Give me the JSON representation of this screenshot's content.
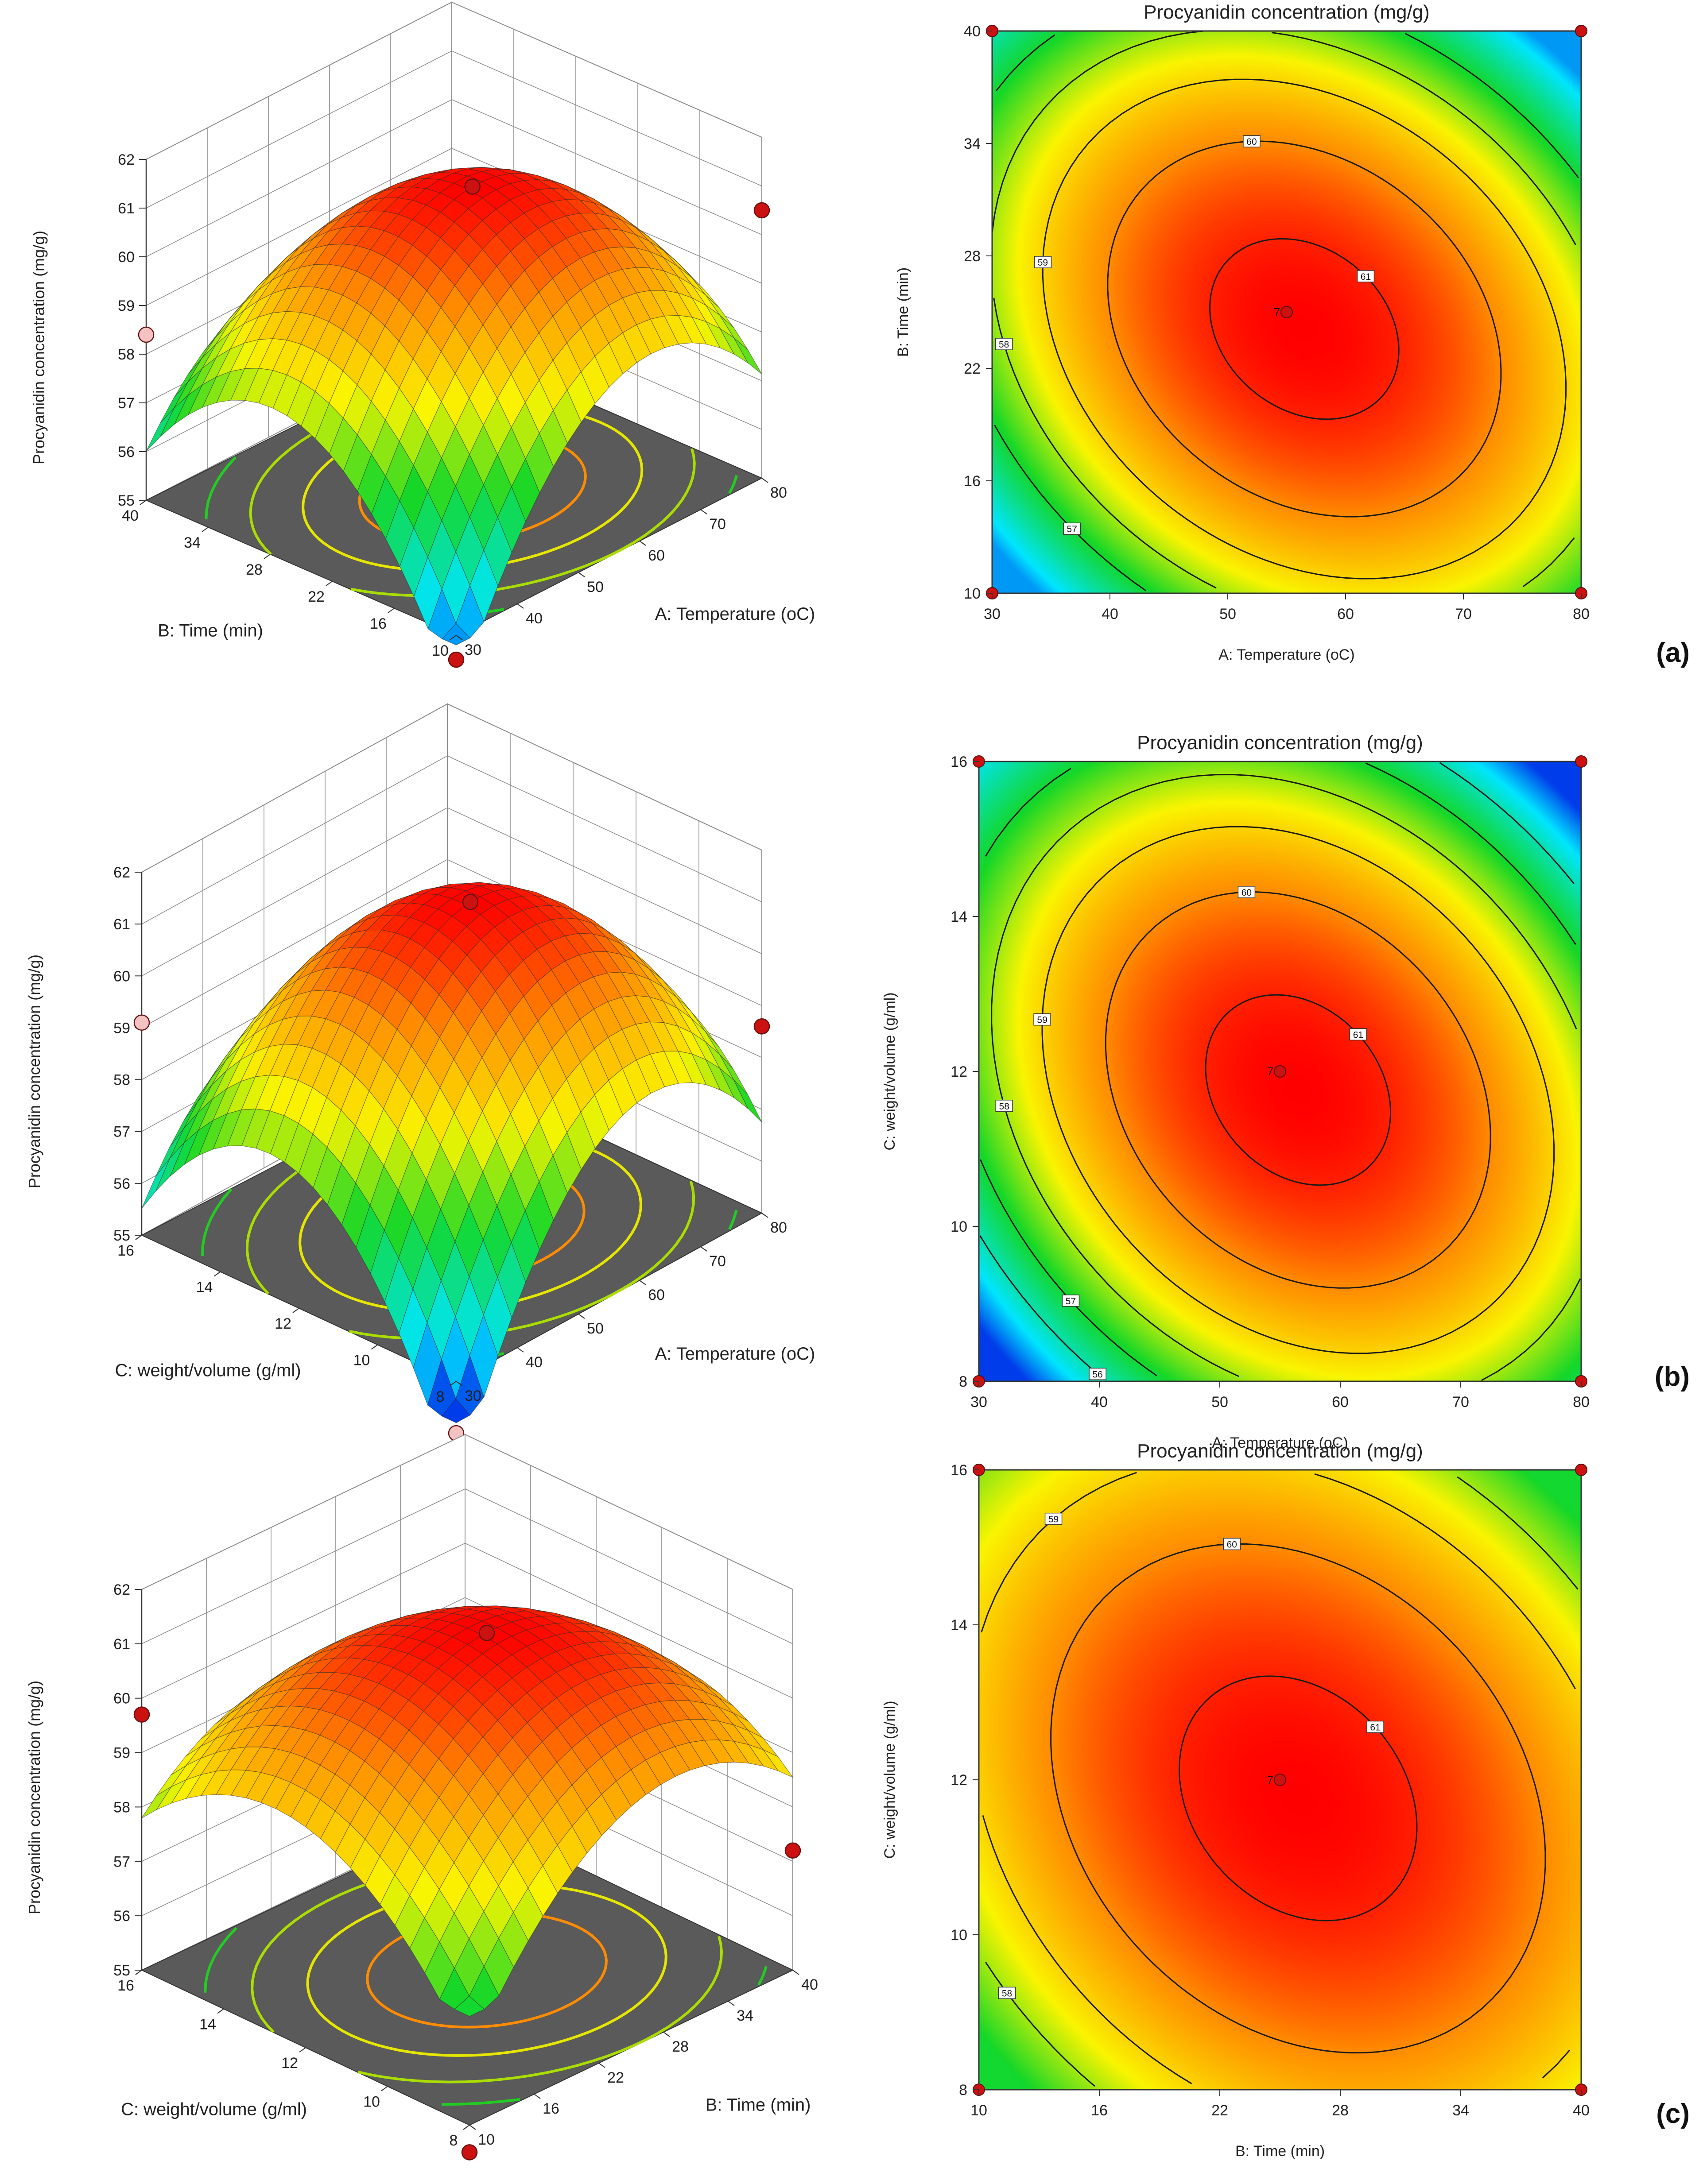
{
  "figure": {
    "panel_labels": [
      "(a)",
      "(b)",
      "(c)"
    ]
  },
  "colors": {
    "floor": "#5a5a5a",
    "grid": "#8c8c8c",
    "design_point": "#cc1111",
    "design_point_light": "#f4c2c2",
    "contour_line": "#1a1a1a",
    "panel_label": "#111111"
  },
  "chart_data": [
    {
      "panel": "(a)",
      "type": "surface",
      "zlabel": "Procyanidin concentration (mg/g)",
      "xlabel": "A: Temperature (oC)",
      "ylabel": "B: Time (min)",
      "x_ticks": [
        "30",
        "40",
        "50",
        "60",
        "70",
        "80"
      ],
      "y_ticks": [
        "10",
        "16",
        "22",
        "28",
        "34",
        "40"
      ],
      "z_ticks": [
        "55",
        "56",
        "57",
        "58",
        "59",
        "60",
        "61",
        "62"
      ],
      "xlim": [
        30,
        80
      ],
      "ylim": [
        10,
        40
      ],
      "zlim": [
        55,
        62
      ],
      "zrange": [
        54.8,
        61.3
      ],
      "design_points_z": [
        61.2,
        58.4,
        60.5,
        54.5
      ]
    },
    {
      "panel": "(a)",
      "type": "contour",
      "title": "Procyanidin concentration (mg/g)",
      "xlabel": "A: Temperature (oC)",
      "ylabel": "B: Time (min)",
      "x_ticks": [
        "30",
        "40",
        "50",
        "60",
        "70",
        "80"
      ],
      "y_ticks": [
        "10",
        "16",
        "22",
        "28",
        "34",
        "40"
      ],
      "xlim": [
        30,
        80
      ],
      "ylim": [
        10,
        40
      ],
      "zrange": [
        54.8,
        61.3
      ],
      "contour_levels": [
        "61",
        "60",
        "59",
        "58",
        "57"
      ],
      "center_label": "7",
      "design_points": [
        [
          30,
          10
        ],
        [
          30,
          40
        ],
        [
          80,
          10
        ],
        [
          80,
          40
        ],
        [
          55,
          25
        ]
      ]
    },
    {
      "panel": "(b)",
      "type": "surface",
      "zlabel": "Procyanidin concentration (mg/g)",
      "xlabel": "A: Temperature (oC)",
      "ylabel": "C: weight/volume (g/ml)",
      "x_ticks": [
        "30",
        "40",
        "50",
        "60",
        "70",
        "80"
      ],
      "y_ticks": [
        "8",
        "10",
        "12",
        "14",
        "16"
      ],
      "z_ticks": [
        "55",
        "56",
        "57",
        "58",
        "59",
        "60",
        "61",
        "62"
      ],
      "xlim": [
        30,
        80
      ],
      "ylim": [
        8,
        16
      ],
      "zlim": [
        55,
        62
      ],
      "zrange": [
        54.2,
        61.3
      ],
      "design_points_z": [
        61.2,
        59.1,
        58.6,
        54.0
      ]
    },
    {
      "panel": "(b)",
      "type": "contour",
      "title": "Procyanidin concentration (mg/g)",
      "xlabel": "A: Temperature (oC)",
      "ylabel": "C: weight/volume (g/ml)",
      "x_ticks": [
        "30",
        "40",
        "50",
        "60",
        "70",
        "80"
      ],
      "y_ticks": [
        "8",
        "10",
        "12",
        "14",
        "16"
      ],
      "xlim": [
        30,
        80
      ],
      "ylim": [
        8,
        16
      ],
      "zrange": [
        54.2,
        61.3
      ],
      "contour_levels": [
        "61",
        "60",
        "59",
        "58",
        "57",
        "56"
      ],
      "center_label": "7",
      "design_points": [
        [
          30,
          8
        ],
        [
          30,
          16
        ],
        [
          80,
          8
        ],
        [
          80,
          16
        ],
        [
          55,
          12
        ]
      ]
    },
    {
      "panel": "(c)",
      "type": "surface",
      "zlabel": "Procyanidin concentration (mg/g)",
      "xlabel": "B: Time (min)",
      "ylabel": "C: weight/volume (g/ml)",
      "x_ticks": [
        "10",
        "16",
        "22",
        "28",
        "34",
        "40"
      ],
      "y_ticks": [
        "8",
        "10",
        "12",
        "14",
        "16"
      ],
      "z_ticks": [
        "55",
        "56",
        "57",
        "58",
        "59",
        "60",
        "61",
        "62"
      ],
      "xlim": [
        10,
        40
      ],
      "ylim": [
        8,
        16
      ],
      "zlim": [
        55,
        62
      ],
      "zrange": [
        57.0,
        61.3
      ],
      "design_points_z": [
        61.2,
        59.7,
        57.2,
        54.5
      ]
    },
    {
      "panel": "(c)",
      "type": "contour",
      "title": "Procyanidin concentration (mg/g)",
      "xlabel": "B: Time (min)",
      "ylabel": "C: weight/volume (g/ml)",
      "x_ticks": [
        "10",
        "16",
        "22",
        "28",
        "34",
        "40"
      ],
      "y_ticks": [
        "8",
        "10",
        "12",
        "14",
        "16"
      ],
      "xlim": [
        10,
        40
      ],
      "ylim": [
        8,
        16
      ],
      "zrange": [
        57.0,
        61.3
      ],
      "contour_levels": [
        "61",
        "60",
        "59",
        "58"
      ],
      "center_label": "7",
      "design_points": [
        [
          10,
          8
        ],
        [
          10,
          16
        ],
        [
          40,
          8
        ],
        [
          40,
          16
        ],
        [
          25,
          12
        ]
      ]
    }
  ]
}
